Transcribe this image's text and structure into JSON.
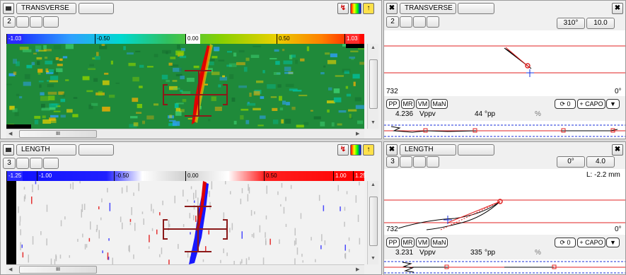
{
  "transverse_panel": {
    "title": "TRANSVERSE",
    "number": "2",
    "colorbar_ticks": [
      "-1.03",
      "-0.50",
      "0.00",
      "0.50",
      "1.03"
    ],
    "scroll_label": "III"
  },
  "length_panel": {
    "title": "LENGTH",
    "number": "3",
    "colorbar_ticks": [
      "-1.25",
      "-1.00",
      "-0.50",
      "0.00",
      "0.50",
      "1.00",
      "1.25"
    ],
    "scroll_label": "III"
  },
  "transverse_signal": {
    "title": "TRANSVERSE",
    "number": "2",
    "rotation": "310°",
    "gain": "10.0",
    "left_value": "732",
    "right_value": "0°",
    "buttons": [
      "PP",
      "MR",
      "VM",
      "MaN"
    ],
    "phase_btn": "0",
    "capo_btn": "+ CAPO",
    "amplitude": "4.236",
    "amplitude_unit": "Vppv",
    "phase": "44",
    "phase_unit": "°pp",
    "percent": "%"
  },
  "length_signal": {
    "title": "LENGTH",
    "number": "3",
    "rotation": "0°",
    "gain": "4.0",
    "length_label": "L: -2.2 mm",
    "left_value": "732",
    "right_value": "0°",
    "buttons": [
      "PP",
      "MR",
      "VM",
      "MaN"
    ],
    "phase_btn": "0",
    "capo_btn": "+ CAPO",
    "amplitude": "3.231",
    "amplitude_unit": "Vppv",
    "phase": "335",
    "phase_unit": "°pp",
    "percent": "%"
  },
  "colors": {
    "scan_green": "#1f8a3a",
    "indication_red": "#d10000",
    "cursor_dark_red": "#8b1a1a",
    "threshold_red": "#e02020",
    "trace_blue": "#1a2fd8"
  }
}
